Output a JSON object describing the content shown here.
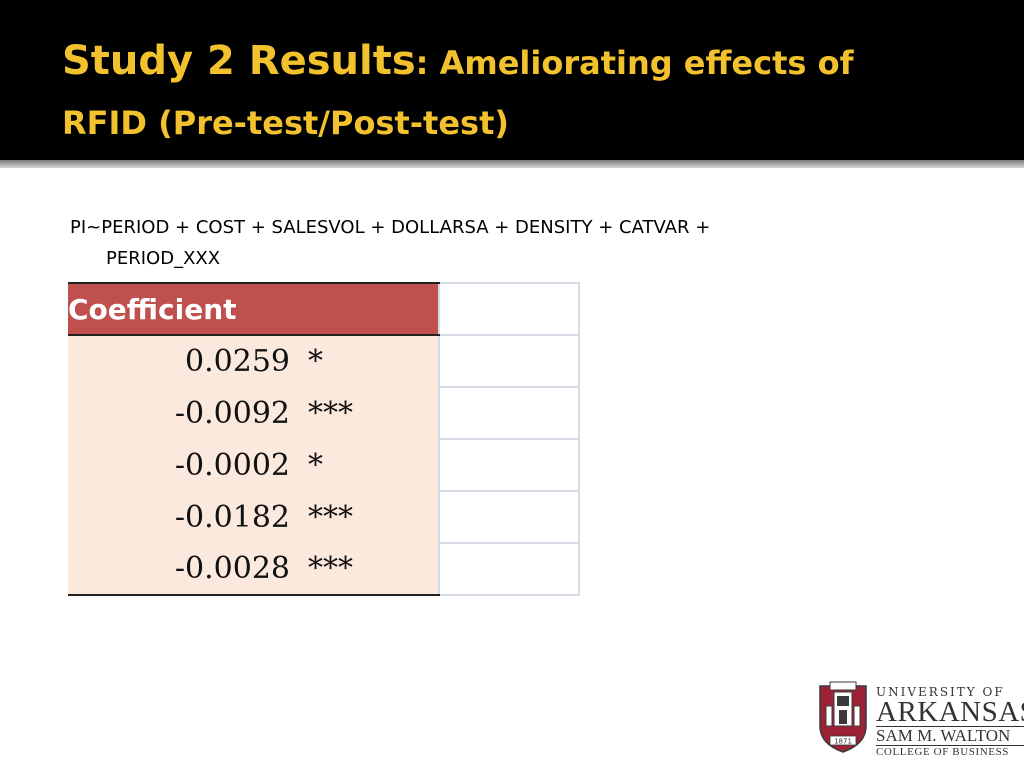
{
  "title": {
    "main": "Study 2 Results",
    "sub_line1": ": Ameliorating effects  of",
    "line2": "RFID (Pre-test/Post-test)"
  },
  "formula": {
    "line1": "PI~PERIOD + COST + SALESVOL + DOLLARSA + DENSITY + CATVAR +",
    "line2": "PERIOD_XXX"
  },
  "table": {
    "header": "Coefficient",
    "rows": [
      {
        "value": "0.0259",
        "sig": "*"
      },
      {
        "value": "-0.0092",
        "sig": "***"
      },
      {
        "value": "-0.0002",
        "sig": "*"
      },
      {
        "value": "-0.0182",
        "sig": "***"
      },
      {
        "value": "-0.0028",
        "sig": "***"
      }
    ]
  },
  "logo": {
    "line1": "UNIVERSITY OF",
    "line2": "ARKANSAS",
    "line3": "SAM M. WALTON",
    "line4": "COLLEGE OF BUSINESS",
    "year": "1871"
  },
  "colors": {
    "title_text": "#f2c12e",
    "header_fill": "#c0504d",
    "row_fill": "#fce9dd"
  }
}
